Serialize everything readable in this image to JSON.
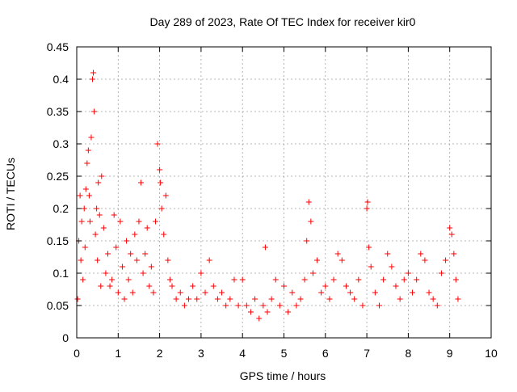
{
  "chart_data": {
    "type": "scatter",
    "title": "Day 289 of 2023, Rate Of TEC Index for receiver kir0",
    "xlabel": "GPS time / hours",
    "ylabel": "ROTI / TECUs",
    "xlim": [
      0,
      10
    ],
    "ylim": [
      0,
      0.45
    ],
    "x_ticks": [
      "0",
      "1",
      "2",
      "3",
      "4",
      "5",
      "6",
      "7",
      "8",
      "9",
      "10"
    ],
    "y_ticks": [
      "0",
      "0.05",
      "0.1",
      "0.15",
      "0.2",
      "0.25",
      "0.3",
      "0.35",
      "0.4",
      "0.45"
    ],
    "grid": true,
    "marker": "+",
    "color": "#ff0000",
    "series": [
      {
        "x": [
          0.02,
          0.05,
          0.08,
          0.1,
          0.12,
          0.15,
          0.18,
          0.2,
          0.22,
          0.25,
          0.28,
          0.3,
          0.32,
          0.35,
          0.38,
          0.4,
          0.42,
          0.45,
          0.48,
          0.5,
          0.52,
          0.55,
          0.58,
          0.6,
          0.65,
          0.7,
          0.75,
          0.8,
          0.85,
          0.9,
          0.95,
          1.0,
          1.05,
          1.1,
          1.15,
          1.2,
          1.25,
          1.3,
          1.35,
          1.4,
          1.45,
          1.5,
          1.55,
          1.6,
          1.65,
          1.7,
          1.75,
          1.8,
          1.85,
          1.9,
          1.95,
          2.0,
          2.02,
          2.05,
          2.1,
          2.15,
          2.2,
          2.25,
          2.3,
          2.4,
          2.5,
          2.6,
          2.7,
          2.8,
          2.9,
          3.0,
          3.1,
          3.2,
          3.3,
          3.4,
          3.5,
          3.6,
          3.7,
          3.8,
          3.9,
          4.0,
          4.1,
          4.2,
          4.3,
          4.4,
          4.5,
          4.55,
          4.6,
          4.7,
          4.8,
          4.9,
          5.0,
          5.1,
          5.2,
          5.3,
          5.4,
          5.5,
          5.55,
          5.6,
          5.65,
          5.7,
          5.8,
          5.9,
          6.0,
          6.1,
          6.2,
          6.3,
          6.4,
          6.5,
          6.6,
          6.7,
          6.8,
          6.9,
          7.0,
          7.02,
          7.05,
          7.1,
          7.2,
          7.3,
          7.4,
          7.5,
          7.6,
          7.7,
          7.8,
          7.9,
          8.0,
          8.1,
          8.2,
          8.3,
          8.4,
          8.5,
          8.6,
          8.7,
          8.8,
          8.9,
          9.0,
          9.05,
          9.1,
          9.15,
          9.2
        ],
        "y": [
          0.06,
          0.15,
          0.22,
          0.12,
          0.18,
          0.09,
          0.2,
          0.14,
          0.23,
          0.27,
          0.29,
          0.22,
          0.18,
          0.31,
          0.4,
          0.41,
          0.35,
          0.16,
          0.2,
          0.12,
          0.24,
          0.19,
          0.08,
          0.25,
          0.17,
          0.1,
          0.13,
          0.08,
          0.09,
          0.19,
          0.14,
          0.07,
          0.18,
          0.11,
          0.06,
          0.15,
          0.09,
          0.13,
          0.07,
          0.16,
          0.12,
          0.18,
          0.24,
          0.1,
          0.13,
          0.17,
          0.08,
          0.11,
          0.07,
          0.18,
          0.3,
          0.26,
          0.24,
          0.2,
          0.16,
          0.22,
          0.12,
          0.09,
          0.08,
          0.06,
          0.07,
          0.05,
          0.06,
          0.08,
          0.06,
          0.1,
          0.07,
          0.12,
          0.08,
          0.06,
          0.07,
          0.05,
          0.06,
          0.09,
          0.05,
          0.09,
          0.05,
          0.04,
          0.06,
          0.03,
          0.05,
          0.14,
          0.04,
          0.06,
          0.09,
          0.05,
          0.08,
          0.04,
          0.07,
          0.05,
          0.06,
          0.09,
          0.15,
          0.21,
          0.18,
          0.1,
          0.12,
          0.07,
          0.08,
          0.06,
          0.09,
          0.13,
          0.12,
          0.08,
          0.07,
          0.06,
          0.09,
          0.05,
          0.2,
          0.21,
          0.14,
          0.11,
          0.07,
          0.05,
          0.09,
          0.13,
          0.11,
          0.08,
          0.06,
          0.09,
          0.1,
          0.07,
          0.09,
          0.13,
          0.12,
          0.07,
          0.06,
          0.05,
          0.1,
          0.12,
          0.17,
          0.16,
          0.13,
          0.09,
          0.06
        ]
      }
    ]
  }
}
